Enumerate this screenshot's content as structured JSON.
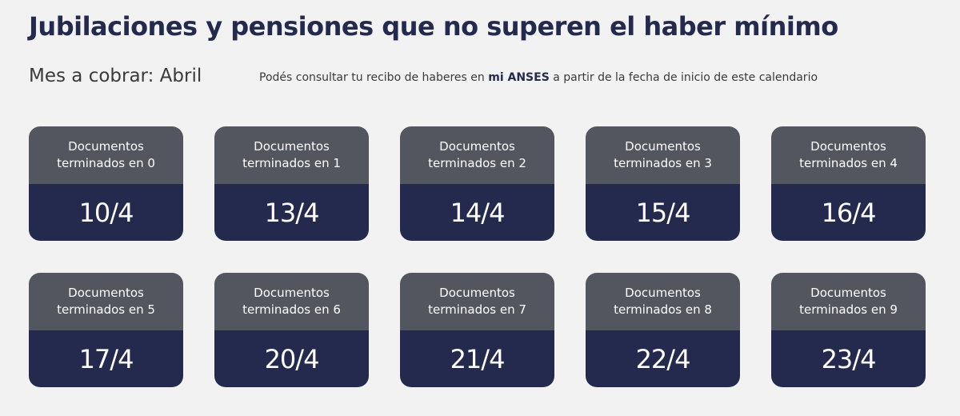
{
  "title": "Jubilaciones y pensiones que no superen el haber mínimo",
  "month_label": "Mes a cobrar: Abril",
  "note": {
    "before": "Podés consultar tu recibo de haberes en ",
    "bold": "mi ANSES",
    "after": " a partir de la fecha de inicio de este calendario"
  },
  "cards": [
    {
      "line1": "Documentos",
      "line2": "terminados en 0",
      "date": "10/4"
    },
    {
      "line1": "Documentos",
      "line2": "terminados en 1",
      "date": "13/4"
    },
    {
      "line1": "Documentos",
      "line2": "terminados en 2",
      "date": "14/4"
    },
    {
      "line1": "Documentos",
      "line2": "terminados en 3",
      "date": "15/4"
    },
    {
      "line1": "Documentos",
      "line2": "terminados en 4",
      "date": "16/4"
    },
    {
      "line1": "Documentos",
      "line2": "terminados en 5",
      "date": "17/4"
    },
    {
      "line1": "Documentos",
      "line2": "terminados en 6",
      "date": "20/4"
    },
    {
      "line1": "Documentos",
      "line2": "terminados en 7",
      "date": "21/4"
    },
    {
      "line1": "Documentos",
      "line2": "terminados en 8",
      "date": "22/4"
    },
    {
      "line1": "Documentos",
      "line2": "terminados en 9",
      "date": "23/4"
    }
  ],
  "colors": {
    "background": "#f2f2f2",
    "title": "#232a4d",
    "card_header": "#53565e",
    "card_body": "#242a4e"
  }
}
